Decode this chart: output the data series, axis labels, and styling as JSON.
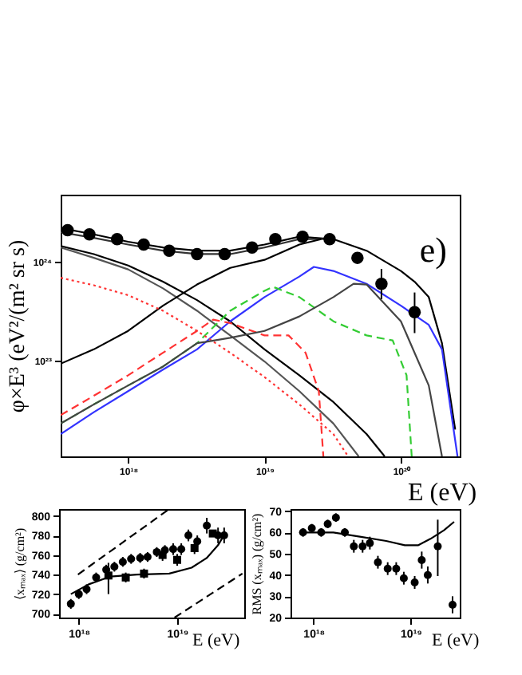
{
  "chart_data": [
    {
      "type": "line",
      "xlabel": "E (eV)",
      "ylabel": "φ×E³ (eV²/(m² sr s)",
      "annotations": [
        "e)"
      ],
      "log": "xy",
      "grid": false,
      "xlim": [
        3.2e+17,
        2.7e+20
      ],
      "ylim": [
        1.07e+22,
        4.8e+24
      ],
      "xticks": [
        {
          "value": 1e+18,
          "label": "10¹⁸"
        },
        {
          "value": 1e+19,
          "label": "10¹⁹"
        },
        {
          "value": 1e+20,
          "label": "10²⁰"
        }
      ],
      "yticks": [
        {
          "value": 1e+23,
          "label": "10²³"
        },
        {
          "value": 1e+24,
          "label": "10²⁴"
        }
      ],
      "series": [
        {
          "color": "#000000",
          "line_style": "solid",
          "x": [
            3.2e+17,
            5.6e+17,
            1e+18,
            1.8e+18,
            3.2e+18,
            5.6e+18,
            1e+19,
            1.8e+19,
            3.2e+19,
            5.6e+19,
            1e+20,
            1.26e+20,
            1.6e+20,
            2e+20,
            2.5e+20
          ],
          "values": [
            2.2e+24,
            1.9e+24,
            1.6e+24,
            1.4e+24,
            1.3e+24,
            1.3e+24,
            1.5e+24,
            1.8e+24,
            1.7e+24,
            1.3e+24,
            8.1e+23,
            6.3e+23,
            4.4e+23,
            1.5e+23,
            2e+22
          ]
        },
        {
          "color": "#333333",
          "line_style": "solid",
          "x": [
            3.2e+17,
            5.6e+17,
            1e+18,
            1.8e+18,
            3.2e+18,
            5.6e+18,
            1e+19,
            1.8e+19,
            3.2e+19
          ],
          "values": [
            2e+24,
            1.75e+24,
            1.5e+24,
            1.3e+24,
            1.2e+24,
            1.2e+24,
            1.4e+24,
            1.7e+24,
            1.7e+24
          ]
        },
        {
          "color": "#000000",
          "line_style": "solid",
          "x": [
            3.2e+17,
            5.6e+17,
            1e+18,
            1.8e+18,
            3.2e+18,
            5.6e+18,
            1e+19,
            1.8e+19,
            3.2e+19,
            5.6e+19,
            7.6e+19
          ],
          "values": [
            1.45e+24,
            1.2e+24,
            9.2e+23,
            6.3e+23,
            4.1e+23,
            2.5e+23,
            1.3e+23,
            7.1e+22,
            3.8e+22,
            1.8e+22,
            1.07e+22
          ]
        },
        {
          "color": "#555555",
          "line_style": "solid",
          "x": [
            3.2e+17,
            5.6e+17,
            1e+18,
            1.8e+18,
            3.2e+18,
            5.6e+18,
            1e+19,
            1.8e+19,
            3.2e+19,
            4.9e+19
          ],
          "values": [
            1.4e+24,
            1.1e+24,
            8.4e+23,
            5.4e+23,
            3.2e+23,
            1.8e+23,
            9.8e+22,
            4.9e+22,
            2.3e+22,
            1.07e+22
          ]
        },
        {
          "color": "#000000",
          "line_style": "solid",
          "x": [
            3.2e+17,
            5.6e+17,
            1e+18,
            1.8e+18,
            3.2e+18,
            5.6e+18,
            1e+19,
            1.8e+19,
            2.6e+19
          ],
          "values": [
            9.3e+22,
            1.3e+23,
            2e+23,
            3.6e+23,
            5.9e+23,
            8.7e+23,
            1.05e+24,
            1.5e+24,
            1.7e+24
          ]
        },
        {
          "color": "#3333ff",
          "line_style": "solid",
          "x": [
            3.2e+17,
            5.6e+17,
            1e+18,
            1.8e+18,
            3.2e+18,
            5.6e+18,
            1e+19,
            1.8e+19,
            2.3e+19,
            3.2e+19,
            5.6e+19,
            1e+20,
            1.6e+20,
            2e+20,
            2.6e+20
          ],
          "values": [
            1.8e+22,
            3e+22,
            4.9e+22,
            8.1e+22,
            1.3e+23,
            2.5e+23,
            4.4e+23,
            7.1e+23,
            8.9e+23,
            8.1e+23,
            6e+23,
            3.6e+23,
            2.3e+23,
            1.3e+23,
            1.07e+22
          ]
        },
        {
          "color": "#33cc33",
          "line_style": "dashed",
          "x": [
            3.2e+17,
            5.6e+17,
            1e+18,
            1.8e+18,
            3.2e+18,
            5.6e+18,
            1e+19,
            1.15e+19,
            1.8e+19,
            3.2e+19,
            5.6e+19,
            8.7e+19,
            1.1e+20,
            1.2e+20
          ],
          "values": [
            2.3e+22,
            3.6e+22,
            5.6e+22,
            8.7e+22,
            1.5e+23,
            3.2e+23,
            5.1e+23,
            5.6e+23,
            4.4e+23,
            2.5e+23,
            1.8e+23,
            1.6e+23,
            7.1e+22,
            1.07e+22
          ]
        },
        {
          "color": "#ff3333",
          "line_style": "dotted",
          "x": [
            3.2e+17,
            5.6e+17,
            1e+18,
            1.8e+18,
            3.2e+18,
            5.6e+18,
            1e+19,
            1.8e+19,
            3.2e+19,
            4.1e+19
          ],
          "values": [
            6.9e+23,
            5.8e+23,
            4.6e+23,
            3.2e+23,
            2e+23,
            1.2e+23,
            6.8e+22,
            3.6e+22,
            1.8e+22,
            1.07e+22
          ]
        },
        {
          "color": "#ff3333",
          "line_style": "dashed",
          "x": [
            3.2e+17,
            5.6e+17,
            1e+18,
            1.8e+18,
            3.2e+18,
            4.2e+18,
            5.6e+18,
            1e+19,
            1.5e+19,
            2e+19,
            2.5e+19,
            2.7e+19
          ],
          "values": [
            2.8e+22,
            4.4e+22,
            7.1e+22,
            1.2e+23,
            2e+23,
            2.6e+23,
            2.4e+23,
            1.8e+23,
            1.8e+23,
            1.2e+23,
            4.9e+22,
            1.07e+22
          ]
        },
        {
          "color": "#444444",
          "line_style": "solid",
          "x": [
            3.2e+17,
            5.6e+17,
            1e+18,
            1.8e+18,
            3.2e+18,
            5.6e+18,
            1e+19,
            1.8e+19,
            3.2e+19,
            4.5e+19,
            5.6e+19,
            1e+20,
            1.6e+20,
            2e+20
          ],
          "values": [
            2.3e+22,
            3.6e+22,
            5.6e+22,
            8.7e+22,
            1.5e+23,
            1.7e+23,
            2e+23,
            2.8e+23,
            4.4e+23,
            6e+23,
            5.9e+23,
            2.5e+23,
            5.6e+22,
            1.07e+22
          ]
        },
        {
          "type": "scatter",
          "marker": "circle",
          "color": "#000000",
          "x": [
            3.6e+17,
            5.2e+17,
            8.3e+17,
            1.3e+18,
            2e+18,
            3.2e+18,
            5.1e+18,
            8.1e+18,
            1.2e+19,
            1.9e+19,
            3e+19,
            4.8e+19,
            7.2e+19,
            1.26e+20
          ],
          "values": [
            2.1e+24,
            1.9e+24,
            1.7e+24,
            1.5e+24,
            1.3e+24,
            1.2e+24,
            1.2e+24,
            1.4e+24,
            1.7e+24,
            1.8e+24,
            1.7e+24,
            1.1e+24,
            6e+23,
            3.1e+23
          ],
          "errors": [
            null,
            null,
            null,
            null,
            null,
            null,
            null,
            null,
            null,
            null,
            null,
            null,
            [
              4.2e+23,
              8.5e+23
            ],
            [
              1.9e+23,
              4.9e+23
            ]
          ]
        }
      ]
    },
    {
      "type": "scatter",
      "xlabel": "E (eV)",
      "ylabel": "⟨xₘₐₓ⟩ (g/cm²)",
      "log": "x",
      "grid": false,
      "xlim": [
        6.3e+17,
        4.8e+19
      ],
      "ylim": [
        696,
        807
      ],
      "xticks": [
        {
          "value": 1e+18,
          "label": "10¹⁸"
        },
        {
          "value": 1e+19,
          "label": "10¹⁹"
        }
      ],
      "yticks": [
        700,
        720,
        740,
        760,
        780,
        800
      ],
      "series": [
        {
          "marker": "circle",
          "color": "#000000",
          "x": [
            8.3e+17,
            1e+18,
            1.2e+18,
            1.5e+18,
            1.9e+18,
            2.3e+18,
            2.8e+18,
            3.4e+18,
            4.2e+18,
            5e+18,
            6.2e+18,
            7.5e+18,
            9.1e+18,
            1.1e+19,
            1.3e+19,
            1.6e+19,
            2e+19,
            2.6e+19,
            3e+19
          ],
          "values": [
            710,
            720,
            725,
            737,
            745,
            748,
            753,
            756,
            757,
            758,
            763,
            765,
            766,
            766,
            780,
            774,
            790,
            780,
            780
          ],
          "errors": [
            5,
            5,
            5,
            5,
            5,
            5,
            5,
            5,
            5,
            5,
            5,
            5,
            6,
            6,
            6,
            6,
            8,
            8,
            8
          ]
        },
        {
          "marker": "square",
          "color": "#000000",
          "x": [
            2e+18,
            3e+18,
            4.6e+18,
            7.1e+18,
            1e+19,
            1.5e+19,
            2.3e+19
          ],
          "values": [
            739,
            737,
            741,
            760,
            755,
            767,
            782
          ],
          "errors": [
            [
              720,
              752
            ],
            5,
            5,
            6,
            6,
            6,
            null
          ]
        },
        {
          "type": "line",
          "color": "#000000",
          "line_style": "solid",
          "x": [
            8.3e+17,
            1.26e+18,
            2.1e+18,
            3.9e+18,
            8.3e+18,
            1.4e+19,
            2e+19,
            2.6e+19,
            3.1e+19
          ],
          "values": [
            720,
            730,
            738,
            740,
            741,
            747,
            757,
            770,
            783
          ]
        },
        {
          "type": "line",
          "color": "#000000",
          "line_style": "dashed",
          "x": [
            9.8e+17,
            8.3e+18
          ],
          "values": [
            740,
            807
          ]
        },
        {
          "type": "line",
          "color": "#000000",
          "line_style": "dashed",
          "x": [
            9.4e+18,
            4.6e+19
          ],
          "values": [
            696,
            741
          ]
        }
      ]
    },
    {
      "type": "scatter",
      "xlabel": "E (eV)",
      "ylabel": "RMS (xₘₐₓ) (g/cm²)",
      "log": "x",
      "grid": false,
      "xlim": [
        5.8e+17,
        3.2e+19
      ],
      "ylim": [
        20,
        71
      ],
      "xticks": [
        {
          "value": 1e+18,
          "label": "10¹⁸"
        },
        {
          "value": 1e+19,
          "label": "10¹⁹"
        }
      ],
      "yticks": [
        20,
        30,
        40,
        50,
        60,
        70
      ],
      "series": [
        {
          "marker": "circle",
          "color": "#000000",
          "x": [
            7.8e+17,
            9.6e+17,
            1.2e+18,
            1.4e+18,
            1.7e+18,
            2.1e+18,
            2.6e+18,
            3.2e+18,
            3.8e+18,
            4.6e+18,
            5.8e+18,
            7.1e+18,
            8.5e+18,
            1.1e+19,
            1.3e+19,
            1.5e+19,
            1.9e+19,
            2.7e+19
          ],
          "values": [
            60,
            62,
            60,
            64,
            67,
            60,
            53.5,
            53.5,
            55,
            46,
            43,
            43,
            38.5,
            36.5,
            47,
            40,
            53.5,
            26
          ],
          "errors": [
            2,
            2,
            2,
            2,
            2,
            2,
            3,
            3,
            3,
            3,
            3,
            3,
            3,
            3,
            4,
            4,
            [
              39.5,
              66
            ],
            4
          ]
        },
        {
          "type": "line",
          "color": "#000000",
          "line_style": "solid",
          "x": [
            7.4e+17,
            1.6e+18,
            3e+18,
            5.6e+18,
            8.7e+18,
            1.2e+19,
            1.6e+19,
            2.2e+19,
            2.8e+19
          ],
          "values": [
            60,
            60,
            58,
            56,
            54,
            54,
            57,
            61,
            65
          ]
        }
      ]
    }
  ]
}
